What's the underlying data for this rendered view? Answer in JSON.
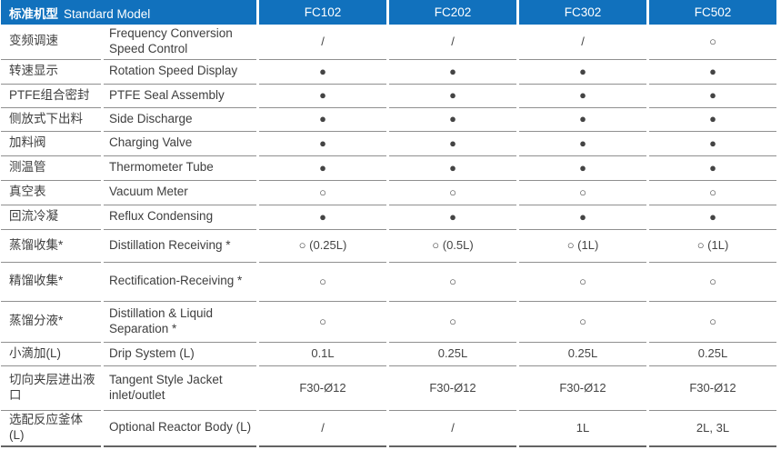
{
  "colors": {
    "header_bg": "#1171BD",
    "header_text": "#FFFFFF",
    "body_text": "#3E3E3E",
    "divider": "#8F8F8F"
  },
  "header": {
    "label_cn": "标准机型",
    "label_en": "Standard Model",
    "models": [
      "FC102",
      "FC202",
      "FC302",
      "FC502"
    ]
  },
  "rows": [
    {
      "cn": "变频调速",
      "en": "Frequency Conversion Speed Control",
      "values": [
        "/",
        "/",
        "/",
        "○"
      ]
    },
    {
      "cn": "转速显示",
      "en": "Rotation Speed Display",
      "values": [
        "●",
        "●",
        "●",
        "●"
      ]
    },
    {
      "cn": "PTFE组合密封",
      "en": "PTFE Seal Assembly",
      "values": [
        "●",
        "●",
        "●",
        "●"
      ]
    },
    {
      "cn": "侧放式下出料",
      "en": "Side Discharge",
      "values": [
        "●",
        "●",
        "●",
        "●"
      ]
    },
    {
      "cn": "加料阀",
      "en": "Charging Valve",
      "values": [
        "●",
        "●",
        "●",
        "●"
      ]
    },
    {
      "cn": "测温管",
      "en": "Thermometer Tube",
      "values": [
        "●",
        "●",
        "●",
        "●"
      ]
    },
    {
      "cn": "真空表",
      "en": "Vacuum Meter",
      "values": [
        "○",
        "○",
        "○",
        "○"
      ]
    },
    {
      "cn": "回流冷凝",
      "en": "Reflux Condensing",
      "values": [
        "●",
        "●",
        "●",
        "●"
      ]
    },
    {
      "cn": "蒸馏收集*",
      "en": "Distillation Receiving *",
      "values": [
        "○ (0.25L)",
        "○ (0.5L)",
        "○ (1L)",
        "○ (1L)"
      ]
    },
    {
      "cn": "精馏收集*",
      "en": "Rectification-Receiving *",
      "values": [
        "○",
        "○",
        "○",
        "○"
      ]
    },
    {
      "cn": "蒸馏分液*",
      "en": "Distillation & Liquid Separation *",
      "values": [
        "○",
        "○",
        "○",
        "○"
      ]
    },
    {
      "cn": "小滴加(L)",
      "en": "Drip System (L)",
      "values": [
        "0.1L",
        "0.25L",
        "0.25L",
        "0.25L"
      ]
    },
    {
      "cn": "切向夹层进出液口",
      "en": "Tangent Style Jacket inlet/outlet",
      "values": [
        "F30-Ø12",
        "F30-Ø12",
        "F30-Ø12",
        "F30-Ø12"
      ]
    },
    {
      "cn": "选配反应釜体 (L)",
      "en": "Optional Reactor Body (L)",
      "values": [
        "/",
        "/",
        "1L",
        "2L, 3L"
      ]
    }
  ]
}
